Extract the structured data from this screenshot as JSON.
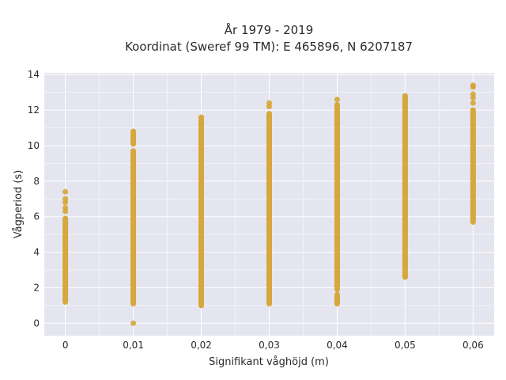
{
  "chart_data": {
    "type": "scatter",
    "title": "År 1979 - 2019",
    "subtitle": "Koordinat (Sweref 99 TM): E 465896, N 6207187",
    "xlabel": "Signifikant våghöjd (m)",
    "ylabel": "Vågperiod (s)",
    "xlim": [
      -0.0031,
      0.0631
    ],
    "ylim": [
      -0.7,
      14.1
    ],
    "x_ticks": [
      "0",
      "0,01",
      "0,02",
      "0,03",
      "0,04",
      "0,05",
      "0,06"
    ],
    "y_ticks": [
      "0",
      "2",
      "4",
      "6",
      "8",
      "10",
      "12",
      "14"
    ],
    "grid": true,
    "marker_color": "#d4a22c",
    "background_color": "#e5e5f0",
    "series": [
      {
        "points": [
          {
            "x": 0,
            "y": 1.2,
            "y_end": 5.9
          },
          {
            "x": 0,
            "y": 6.3
          },
          {
            "x": 0,
            "y": 6.5
          },
          {
            "x": 0,
            "y": 6.8
          },
          {
            "x": 0,
            "y": 7.0
          },
          {
            "x": 0,
            "y": 7.4
          },
          {
            "x": 0.01,
            "y": 0.0
          },
          {
            "x": 0.01,
            "y": 1.1,
            "y_end": 9.7
          },
          {
            "x": 0.01,
            "y": 10.1,
            "y_end": 10.8
          },
          {
            "x": 0.02,
            "y": 1.0,
            "y_end": 11.6
          },
          {
            "x": 0.03,
            "y": 1.1,
            "y_end": 11.8
          },
          {
            "x": 0.03,
            "y": 12.2
          },
          {
            "x": 0.03,
            "y": 12.4
          },
          {
            "x": 0.04,
            "y": 1.1,
            "y_end": 1.6
          },
          {
            "x": 0.04,
            "y": 1.9,
            "y_end": 12.3
          },
          {
            "x": 0.04,
            "y": 12.6
          },
          {
            "x": 0.05,
            "y": 2.6,
            "y_end": 12.8
          },
          {
            "x": 0.06,
            "y": 5.7,
            "y_end": 12.0
          },
          {
            "x": 0.06,
            "y": 12.4
          },
          {
            "x": 0.06,
            "y": 12.7
          },
          {
            "x": 0.06,
            "y": 12.9
          },
          {
            "x": 0.06,
            "y": 13.3
          },
          {
            "x": 0.06,
            "y": 13.4
          }
        ]
      }
    ]
  }
}
